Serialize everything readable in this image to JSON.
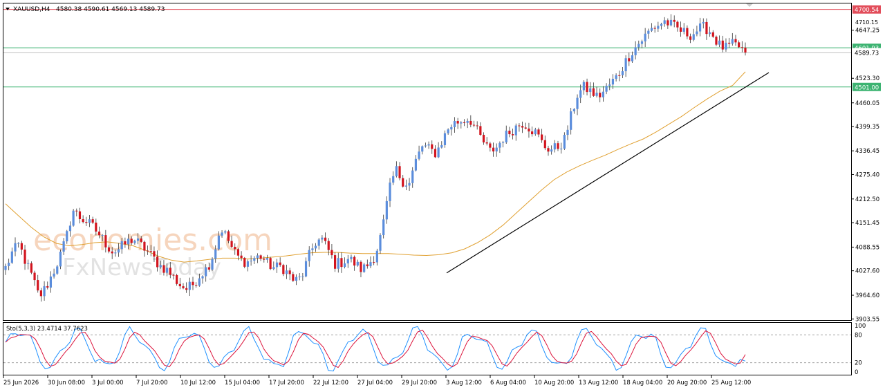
{
  "chart_data": {
    "type": "candlestick",
    "symbol_header": "XAUUSD,H4",
    "ohlc_label": "4580.38 4590.61 4569.13 4589.73",
    "watermark_line1": "economies.com",
    "watermark_line2": "FxNewsToday",
    "price_axis": {
      "ylim": [
        3900.55,
        4716.0
      ],
      "ticks": [
        "4647.25",
        "4523.30",
        "4460.05",
        "4399.35",
        "4336.45",
        "4275.40",
        "4212.50",
        "4151.45",
        "4088.55",
        "4027.60",
        "3964.60",
        "3903.55"
      ],
      "top_partial_label": "4710.15"
    },
    "price_levels": [
      {
        "value": 4700.54,
        "label": "4700.54",
        "color": "#e24d5a"
      },
      {
        "value": 4601.93,
        "label": "4601.93",
        "color": "#3cb371"
      },
      {
        "value": 4589.73,
        "label": "4589.73",
        "color": "#c0c0c0"
      },
      {
        "value": 4501.0,
        "label": "4501.00",
        "color": "#3cb371"
      }
    ],
    "trendline": {
      "start_price": 4022,
      "end_price": 4538,
      "color": "#000000"
    },
    "moving_average": {
      "color": "#e0a030",
      "values": [
        4200,
        4170,
        4140,
        4115,
        4098,
        4092,
        4095,
        4100,
        4102,
        4098,
        4092,
        4080,
        4065,
        4055,
        4050,
        4053,
        4057,
        4060,
        4060,
        4058,
        4060,
        4063,
        4066,
        4070,
        4074,
        4075,
        4075,
        4073,
        4072,
        4072,
        4072,
        4070,
        4068,
        4067,
        4069,
        4074,
        4084,
        4100,
        4120,
        4145,
        4175,
        4205,
        4235,
        4262,
        4282,
        4298,
        4312,
        4325,
        4340,
        4354,
        4367,
        4385,
        4405,
        4425,
        4448,
        4470,
        4490,
        4505,
        4540
      ]
    },
    "x_axis": {
      "labels": [
        "25 Jun 2026",
        "30 Jun 08:00",
        "3 Jul 00:00",
        "7 Jul 20:00",
        "10 Jul 12:00",
        "15 Jul 04:00",
        "17 Jul 20:00",
        "22 Jul 12:00",
        "27 Jul 04:00",
        "29 Jul 20:00",
        "3 Aug 12:00",
        "6 Aug 04:00",
        "10 Aug 20:00",
        "13 Aug 12:00",
        "18 Aug 04:00",
        "20 Aug 20:00",
        "25 Aug 12:00"
      ]
    },
    "price_path": [
      4035,
      4075,
      4095,
      4050,
      4010,
      3960,
      3985,
      4020,
      4060,
      4110,
      4185,
      4165,
      4155,
      4140,
      4120,
      4095,
      4075,
      4085,
      4100,
      4110,
      4095,
      4080,
      4060,
      4040,
      4030,
      4010,
      3990,
      3980,
      3995,
      4020,
      4035,
      4075,
      4140,
      4110,
      4075,
      4055,
      4050,
      4060,
      4065,
      4045,
      4035,
      4040,
      4020,
      4000,
      4010,
      4060,
      4100,
      4110,
      4080,
      4045,
      4050,
      4060,
      4045,
      4030,
      4045,
      4070,
      4130,
      4230,
      4290,
      4260,
      4250,
      4310,
      4350,
      4340,
      4330,
      4365,
      4400,
      4410,
      4415,
      4420,
      4390,
      4360,
      4335,
      4345,
      4370,
      4385,
      4400,
      4410,
      4395,
      4380,
      4350,
      4340,
      4345,
      4360,
      4420,
      4480,
      4500,
      4490,
      4475,
      4490,
      4510,
      4530,
      4560,
      4590,
      4610,
      4630,
      4650,
      4660,
      4670,
      4660,
      4650,
      4640,
      4635,
      4650,
      4655,
      4640,
      4610,
      4600,
      4610,
      4605,
      4590
    ],
    "stochastic": {
      "label": "Sto(5,3,3) 23.4714 37.7623",
      "k": 23.4714,
      "d": 37.7623,
      "levels": [
        80,
        20
      ],
      "ticks": [
        "100",
        "80",
        "20",
        "0"
      ],
      "k_color": "#1e90ff",
      "d_color": "#dc143c"
    }
  }
}
